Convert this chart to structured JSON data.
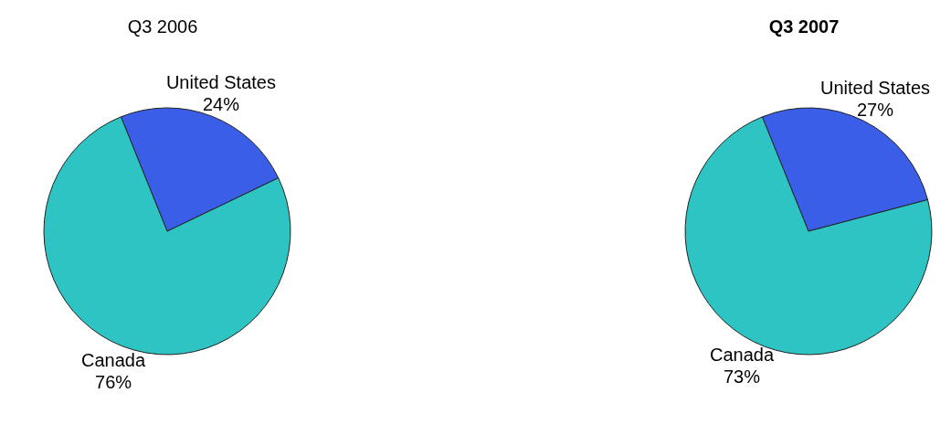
{
  "chart_data": [
    {
      "type": "pie",
      "title": "Q3 2006",
      "categories": [
        "United States",
        "Canada"
      ],
      "values": [
        24,
        76
      ],
      "colors": [
        "#3a5ee8",
        "#2ec4c4"
      ],
      "value_labels": [
        "24%",
        "76%"
      ]
    },
    {
      "type": "pie",
      "title": "Q3 2007",
      "categories": [
        "United States",
        "Canada"
      ],
      "values": [
        27,
        73
      ],
      "colors": [
        "#3a5ee8",
        "#2ec4c4"
      ],
      "value_labels": [
        "27%",
        "73%"
      ]
    }
  ]
}
